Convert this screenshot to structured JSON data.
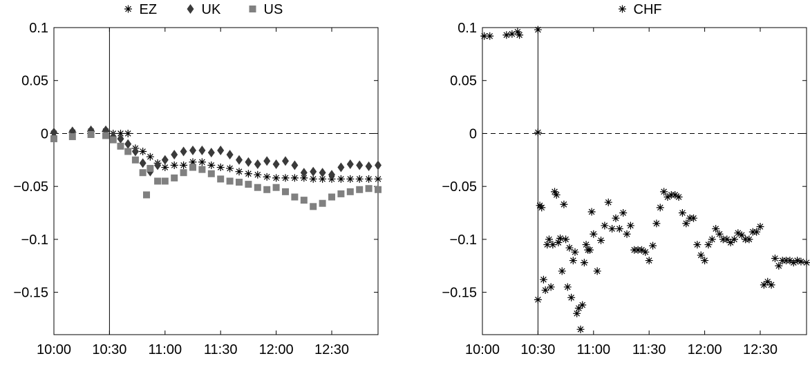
{
  "chart_data": [
    {
      "type": "scatter",
      "title": "",
      "xlabel": "",
      "ylabel": "",
      "x_unit": "minutes after 10:00",
      "xlim": [
        0,
        175
      ],
      "ylim": [
        -0.19,
        0.1
      ],
      "xticks": [
        0,
        30,
        60,
        90,
        120,
        150
      ],
      "xtick_labels": [
        "10:00",
        "10:30",
        "11:00",
        "11:30",
        "12:00",
        "12:30"
      ],
      "yticks": [
        0.1,
        0.05,
        0,
        -0.05,
        -0.1,
        -0.15
      ],
      "ytick_labels": [
        "0.1",
        "0.05",
        "0",
        "−0.05",
        "−0.1",
        "−0.15"
      ],
      "reference_hline": 0,
      "event_vline": 30,
      "legend": [
        "EZ",
        "UK",
        "US"
      ],
      "legend_position": "top",
      "series": [
        {
          "name": "EZ",
          "marker": "asterisk",
          "color": "#000000",
          "x": [
            0,
            10,
            20,
            28,
            32,
            36,
            40,
            44,
            48,
            52,
            56,
            60,
            65,
            70,
            75,
            80,
            85,
            90,
            95,
            100,
            105,
            110,
            115,
            120,
            125,
            130,
            135,
            140,
            145,
            150,
            155,
            160,
            165,
            170,
            175
          ],
          "y": [
            0.0,
            0.001,
            0.002,
            0.002,
            0.0,
            0.0,
            0.0,
            -0.014,
            -0.017,
            -0.022,
            -0.028,
            -0.032,
            -0.03,
            -0.03,
            -0.027,
            -0.027,
            -0.03,
            -0.032,
            -0.033,
            -0.036,
            -0.038,
            -0.039,
            -0.041,
            -0.042,
            -0.042,
            -0.042,
            -0.042,
            -0.043,
            -0.043,
            -0.043,
            -0.043,
            -0.043,
            -0.043,
            -0.043,
            -0.043
          ]
        },
        {
          "name": "UK",
          "marker": "diamond",
          "color": "#3a3a3a",
          "x": [
            0,
            10,
            20,
            28,
            32,
            36,
            40,
            44,
            48,
            52,
            56,
            60,
            65,
            70,
            75,
            80,
            85,
            90,
            95,
            100,
            105,
            110,
            115,
            120,
            125,
            130,
            135,
            140,
            145,
            150,
            155,
            160,
            165,
            170,
            175
          ],
          "y": [
            0.001,
            0.002,
            0.003,
            0.003,
            -0.003,
            -0.005,
            -0.01,
            -0.017,
            -0.028,
            -0.036,
            -0.03,
            -0.025,
            -0.02,
            -0.017,
            -0.016,
            -0.016,
            -0.018,
            -0.016,
            -0.02,
            -0.025,
            -0.027,
            -0.029,
            -0.026,
            -0.029,
            -0.026,
            -0.03,
            -0.037,
            -0.036,
            -0.037,
            -0.039,
            -0.032,
            -0.029,
            -0.03,
            -0.031,
            -0.03
          ]
        },
        {
          "name": "US",
          "marker": "square",
          "color": "#808080",
          "x": [
            0,
            10,
            20,
            28,
            32,
            36,
            40,
            44,
            48,
            50,
            52,
            56,
            60,
            65,
            70,
            75,
            80,
            85,
            90,
            95,
            100,
            105,
            110,
            115,
            120,
            125,
            130,
            135,
            140,
            145,
            150,
            155,
            160,
            165,
            170,
            175
          ],
          "y": [
            -0.005,
            -0.003,
            -0.001,
            -0.002,
            -0.006,
            -0.012,
            -0.017,
            -0.025,
            -0.037,
            -0.058,
            -0.033,
            -0.045,
            -0.045,
            -0.042,
            -0.037,
            -0.032,
            -0.034,
            -0.038,
            -0.043,
            -0.045,
            -0.046,
            -0.048,
            -0.051,
            -0.053,
            -0.051,
            -0.055,
            -0.06,
            -0.063,
            -0.069,
            -0.066,
            -0.06,
            -0.057,
            -0.055,
            -0.053,
            -0.052,
            -0.053
          ]
        }
      ]
    },
    {
      "type": "scatter",
      "title": "",
      "xlabel": "",
      "ylabel": "",
      "x_unit": "minutes after 10:00",
      "xlim": [
        0,
        175
      ],
      "ylim": [
        -0.19,
        0.1
      ],
      "xticks": [
        0,
        30,
        60,
        90,
        120,
        150
      ],
      "xtick_labels": [
        "10:00",
        "10:30",
        "11:00",
        "11:30",
        "12:00",
        "12:30"
      ],
      "yticks": [
        0.1,
        0.05,
        0,
        -0.05,
        -0.1,
        -0.15
      ],
      "ytick_labels": [
        "0.1",
        "0.05",
        "0",
        "−0.05",
        "−0.1",
        "−0.15"
      ],
      "reference_hline": 0,
      "event_vline": 30,
      "legend": [
        "CHF"
      ],
      "legend_position": "top",
      "series": [
        {
          "name": "CHF",
          "marker": "asterisk",
          "color": "#000000",
          "x": [
            1,
            4,
            13,
            16,
            19,
            20,
            30,
            30,
            30,
            31,
            32,
            33,
            34,
            35,
            36,
            37,
            38,
            39,
            40,
            41,
            42,
            43,
            44,
            45,
            46,
            47,
            48,
            49,
            50,
            51,
            52,
            53,
            54,
            55,
            56,
            57,
            58,
            59,
            60,
            62,
            64,
            66,
            68,
            70,
            72,
            74,
            76,
            78,
            80,
            82,
            84,
            86,
            88,
            90,
            92,
            94,
            96,
            98,
            100,
            102,
            104,
            106,
            108,
            110,
            112,
            114,
            116,
            118,
            120,
            122,
            124,
            126,
            128,
            130,
            132,
            134,
            136,
            138,
            140,
            142,
            144,
            146,
            148,
            150,
            152,
            154,
            156,
            158,
            160,
            162,
            164,
            166,
            168,
            170,
            172,
            175
          ],
          "y": [
            0.092,
            0.092,
            0.093,
            0.094,
            0.096,
            0.093,
            0.098,
            0.001,
            -0.157,
            -0.068,
            -0.07,
            -0.138,
            -0.148,
            -0.105,
            -0.1,
            -0.145,
            -0.105,
            -0.055,
            -0.058,
            -0.103,
            -0.099,
            -0.13,
            -0.067,
            -0.1,
            -0.145,
            -0.108,
            -0.155,
            -0.12,
            -0.112,
            -0.17,
            -0.165,
            -0.185,
            -0.162,
            -0.122,
            -0.105,
            -0.11,
            -0.11,
            -0.074,
            -0.095,
            -0.13,
            -0.101,
            -0.087,
            -0.065,
            -0.09,
            -0.08,
            -0.09,
            -0.075,
            -0.095,
            -0.087,
            -0.11,
            -0.11,
            -0.11,
            -0.112,
            -0.12,
            -0.106,
            -0.085,
            -0.07,
            -0.055,
            -0.06,
            -0.058,
            -0.058,
            -0.06,
            -0.075,
            -0.085,
            -0.08,
            -0.08,
            -0.105,
            -0.115,
            -0.12,
            -0.105,
            -0.1,
            -0.09,
            -0.095,
            -0.1,
            -0.1,
            -0.103,
            -0.1,
            -0.094,
            -0.096,
            -0.1,
            -0.1,
            -0.093,
            -0.093,
            -0.088,
            -0.143,
            -0.14,
            -0.143,
            -0.118,
            -0.125,
            -0.12,
            -0.12,
            -0.12,
            -0.122,
            -0.12,
            -0.121,
            -0.122
          ]
        }
      ]
    }
  ]
}
